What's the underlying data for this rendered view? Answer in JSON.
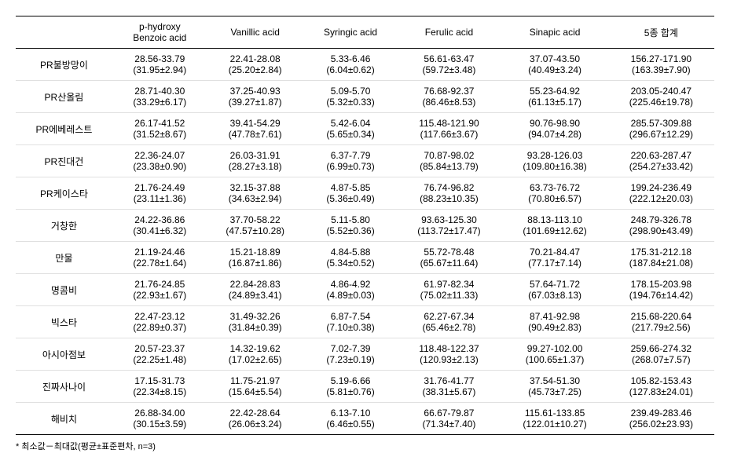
{
  "columns": [
    "",
    "p-hydroxy\nBenzoic acid",
    "Vanillic acid",
    "Syringic acid",
    "Ferulic acid",
    "Sinapic acid",
    "5종 합계"
  ],
  "rows": [
    {
      "label": "PR불방망이",
      "cells": [
        {
          "range": "28.56-33.79",
          "mean": "(31.95±2.94)"
        },
        {
          "range": "22.41-28.08",
          "mean": "(25.20±2.84)"
        },
        {
          "range": "5.33-6.46",
          "mean": "(6.04±0.62)"
        },
        {
          "range": "56.61-63.47",
          "mean": "(59.72±3.48)"
        },
        {
          "range": "37.07-43.50",
          "mean": "(40.49±3.24)"
        },
        {
          "range": "156.27-171.90",
          "mean": "(163.39±7.90)"
        }
      ]
    },
    {
      "label": "PR산올림",
      "cells": [
        {
          "range": "28.71-40.30",
          "mean": "(33.29±6.17)"
        },
        {
          "range": "37.25-40.93",
          "mean": "(39.27±1.87)"
        },
        {
          "range": "5.09-5.70",
          "mean": "(5.32±0.33)"
        },
        {
          "range": "76.68-92.37",
          "mean": "(86.46±8.53)"
        },
        {
          "range": "55.23-64.92",
          "mean": "(61.13±5.17)"
        },
        {
          "range": "203.05-240.47",
          "mean": "(225.46±19.78)"
        }
      ]
    },
    {
      "label": "PR에베레스트",
      "cells": [
        {
          "range": "26.17-41.52",
          "mean": "(31.52±8.67)"
        },
        {
          "range": "39.41-54.29",
          "mean": "(47.78±7.61)"
        },
        {
          "range": "5.42-6.04",
          "mean": "(5.65±0.34)"
        },
        {
          "range": "115.48-121.90",
          "mean": "(117.66±3.67)"
        },
        {
          "range": "90.76-98.90",
          "mean": "(94.07±4.28)"
        },
        {
          "range": "285.57-309.88",
          "mean": "(296.67±12.29)"
        }
      ]
    },
    {
      "label": "PR진대건",
      "cells": [
        {
          "range": "22.36-24.07",
          "mean": "(23.38±0.90)"
        },
        {
          "range": "26.03-31.91",
          "mean": "(28.27±3.18)"
        },
        {
          "range": "6.37-7.79",
          "mean": "(6.99±0.73)"
        },
        {
          "range": "70.87-98.02",
          "mean": "(85.84±13.79)"
        },
        {
          "range": "93.28-126.03",
          "mean": "(109.80±16.38)"
        },
        {
          "range": "220.63-287.47",
          "mean": "(254.27±33.42)"
        }
      ]
    },
    {
      "label": "PR케이스타",
      "cells": [
        {
          "range": "21.76-24.49",
          "mean": "(23.11±1.36)"
        },
        {
          "range": "32.15-37.88",
          "mean": "(34.63±2.94)"
        },
        {
          "range": "4.87-5.85",
          "mean": "(5.36±0.49)"
        },
        {
          "range": "76.74-96.82",
          "mean": "(88.23±10.35)"
        },
        {
          "range": "63.73-76.72",
          "mean": "(70.80±6.57)"
        },
        {
          "range": "199.24-236.49",
          "mean": "(222.12±20.03)"
        }
      ]
    },
    {
      "label": "거창한",
      "cells": [
        {
          "range": "24.22-36.86",
          "mean": "(30.41±6.32)"
        },
        {
          "range": "37.70-58.22",
          "mean": "(47.57±10.28)"
        },
        {
          "range": "5.11-5.80",
          "mean": "(5.52±0.36)"
        },
        {
          "range": "93.63-125.30",
          "mean": "(113.72±17.47)"
        },
        {
          "range": "88.13-113.10",
          "mean": "(101.69±12.62)"
        },
        {
          "range": "248.79-326.78",
          "mean": "(298.90±43.49)"
        }
      ]
    },
    {
      "label": "만물",
      "cells": [
        {
          "range": "21.19-24.46",
          "mean": "(22.78±1.64)"
        },
        {
          "range": "15.21-18.89",
          "mean": "(16.87±1.86)"
        },
        {
          "range": "4.84-5.88",
          "mean": "(5.34±0.52)"
        },
        {
          "range": "55.72-78.48",
          "mean": "(65.67±11.64)"
        },
        {
          "range": "70.21-84.47",
          "mean": "(77.17±7.14)"
        },
        {
          "range": "175.31-212.18",
          "mean": "(187.84±21.08)"
        }
      ]
    },
    {
      "label": "명콤비",
      "cells": [
        {
          "range": "21.76-24.85",
          "mean": "(22.93±1.67)"
        },
        {
          "range": "22.84-28.83",
          "mean": "(24.89±3.41)"
        },
        {
          "range": "4.86-4.92",
          "mean": "(4.89±0.03)"
        },
        {
          "range": "61.97-82.34",
          "mean": "(75.02±11.33)"
        },
        {
          "range": "57.64-71.72",
          "mean": "(67.03±8.13)"
        },
        {
          "range": "178.15-203.98",
          "mean": "(194.76±14.42)"
        }
      ]
    },
    {
      "label": "빅스타",
      "cells": [
        {
          "range": "22.47-23.12",
          "mean": "(22.89±0.37)"
        },
        {
          "range": "31.49-32.26",
          "mean": "(31.84±0.39)"
        },
        {
          "range": "6.87-7.54",
          "mean": "(7.10±0.38)"
        },
        {
          "range": "62.27-67.34",
          "mean": "(65.46±2.78)"
        },
        {
          "range": "87.41-92.98",
          "mean": "(90.49±2.83)"
        },
        {
          "range": "215.68-220.64",
          "mean": "(217.79±2.56)"
        }
      ]
    },
    {
      "label": "아시아점보",
      "cells": [
        {
          "range": "20.57-23.37",
          "mean": "(22.25±1.48)"
        },
        {
          "range": "14.32-19.62",
          "mean": "(17.02±2.65)"
        },
        {
          "range": "7.02-7.39",
          "mean": "(7.23±0.19)"
        },
        {
          "range": "118.48-122.37",
          "mean": "(120.93±2.13)"
        },
        {
          "range": "99.27-102.00",
          "mean": "(100.65±1.37)"
        },
        {
          "range": "259.66-274.32",
          "mean": "(268.07±7.57)"
        }
      ]
    },
    {
      "label": "진짜사나이",
      "cells": [
        {
          "range": "17.15-31.73",
          "mean": "(22.34±8.15)"
        },
        {
          "range": "11.75-21.97",
          "mean": "(15.64±5.54)"
        },
        {
          "range": "5.19-6.66",
          "mean": "(5.81±0.76)"
        },
        {
          "range": "31.76-41.77",
          "mean": "(38.31±5.67)"
        },
        {
          "range": "37.54-51.30",
          "mean": "(45.73±7.25)"
        },
        {
          "range": "105.82-153.43",
          "mean": "(127.83±24.01)"
        }
      ]
    },
    {
      "label": "해비치",
      "cells": [
        {
          "range": "26.88-34.00",
          "mean": "(30.15±3.59)"
        },
        {
          "range": "22.42-28.64",
          "mean": "(26.06±3.24)"
        },
        {
          "range": "6.13-7.10",
          "mean": "(6.46±0.55)"
        },
        {
          "range": "66.67-79.87",
          "mean": "(71.34±7.40)"
        },
        {
          "range": "115.61-133.85",
          "mean": "(122.01±10.27)"
        },
        {
          "range": "239.49-283.46",
          "mean": "(256.02±23.93)"
        }
      ]
    }
  ],
  "footnote": "* 최소값－최대값(평균±표준편차, n=3)"
}
